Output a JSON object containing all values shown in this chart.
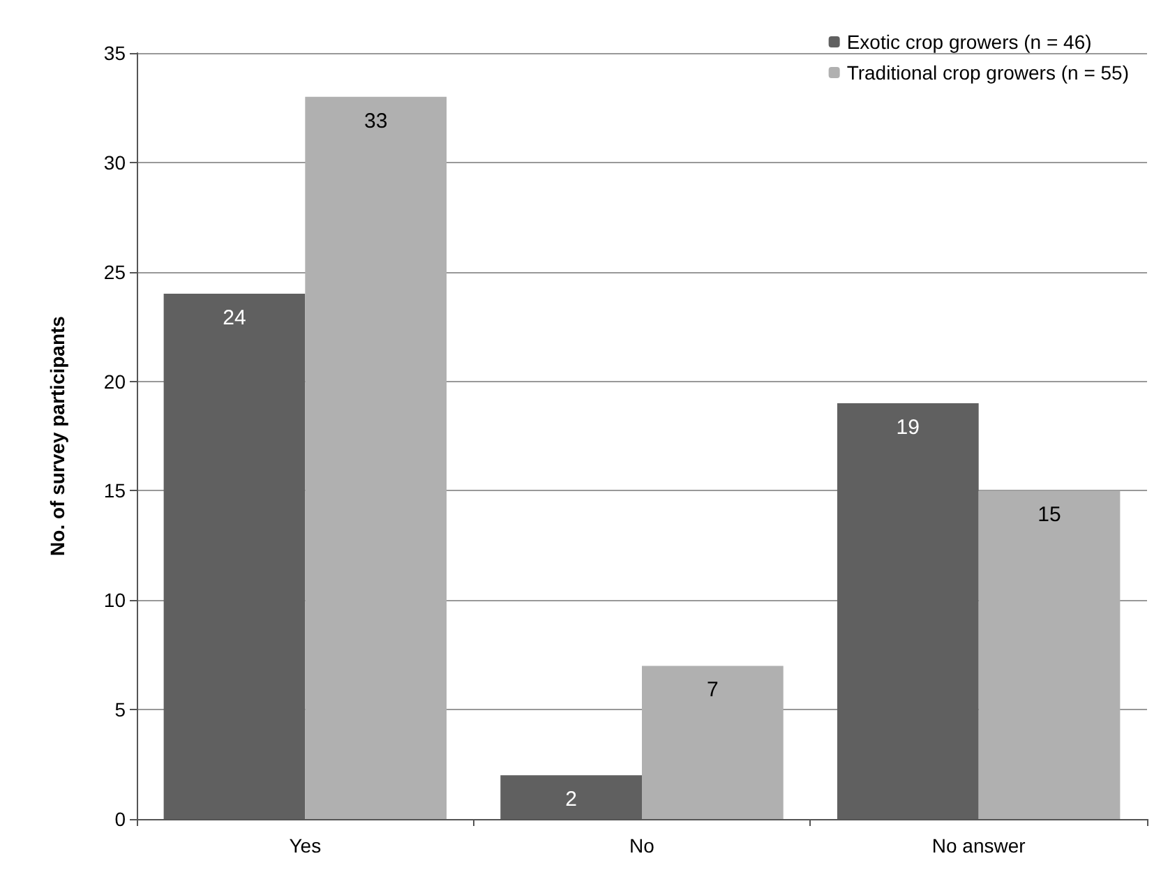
{
  "chart_data": {
    "type": "bar",
    "ylabel": "No. of survey participants",
    "categories": [
      "Yes",
      "No",
      "No answer"
    ],
    "series": [
      {
        "name": "Exotic crop growers (n = 46)",
        "color": "#606060",
        "values": [
          24,
          2,
          19
        ]
      },
      {
        "name": "Traditional crop growers (n = 55)",
        "color": "#b0b0b0",
        "values": [
          33,
          7,
          15
        ]
      }
    ],
    "ylim": [
      0,
      35
    ],
    "yticks": [
      0,
      5,
      10,
      15,
      20,
      25,
      30,
      35
    ],
    "grid": "y",
    "legend": "top right",
    "data_labels": true
  }
}
